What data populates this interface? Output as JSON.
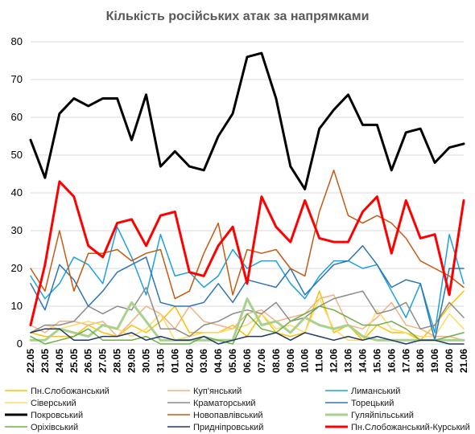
{
  "chart_data": {
    "type": "line",
    "title": "Кількість російських атак за напрямками",
    "xlabel": "",
    "ylabel": "",
    "ylim": [
      0,
      80
    ],
    "yticks": [
      0,
      10,
      20,
      30,
      40,
      50,
      60,
      70,
      80
    ],
    "grid": true,
    "legend_position": "bottom",
    "x": [
      "22.05",
      "23.05",
      "24.05",
      "25.05",
      "26.05",
      "27.05",
      "28.05",
      "29.05",
      "30.05",
      "31.05",
      "01.06",
      "02.06",
      "03.06",
      "04.06",
      "05.06",
      "06.06",
      "07.06",
      "08.06",
      "09.06",
      "10.06",
      "11.06",
      "12.06",
      "13.06",
      "14.06",
      "15.06",
      "16.06",
      "17.06",
      "18.06",
      "19.06",
      "20.06",
      "21.06"
    ],
    "series": [
      {
        "name": "Пн.Слобожанський",
        "color": "#ffc000",
        "width": 1.5,
        "values": [
          3,
          2,
          2,
          2,
          5,
          3,
          2,
          5,
          3,
          6,
          10,
          3,
          3,
          3,
          5,
          2,
          8,
          3,
          2,
          3,
          14,
          3,
          5,
          1,
          5,
          3,
          3,
          1,
          5,
          10,
          14
        ]
      },
      {
        "name": "Куп'янський",
        "color": "#f4b183",
        "width": 1.5,
        "values": [
          5,
          3,
          6,
          6,
          5,
          6,
          2,
          6,
          10,
          8,
          4,
          10,
          6,
          5,
          4,
          8,
          9,
          6,
          7,
          8,
          12,
          13,
          5,
          4,
          7,
          11,
          5,
          4,
          2,
          2,
          1
        ]
      },
      {
        "name": "Лиманський",
        "color": "#1ba1e2",
        "width": 1.5,
        "values": [
          18,
          12,
          16,
          23,
          21,
          16,
          31,
          23,
          13,
          29,
          18,
          19,
          15,
          18,
          25,
          20,
          22,
          22,
          16,
          12,
          18,
          22,
          22,
          20,
          21,
          14,
          7,
          16,
          3,
          29,
          16
        ]
      },
      {
        "name": "Сіверський",
        "color": "#ffd966",
        "width": 1.5,
        "values": [
          3,
          5,
          4,
          5,
          6,
          5,
          4,
          2,
          4,
          8,
          1,
          2,
          3,
          3,
          4,
          5,
          8,
          4,
          5,
          3,
          12,
          4,
          1,
          1,
          9,
          4,
          3,
          2,
          2,
          8,
          4
        ]
      },
      {
        "name": "Краматорський",
        "color": "#8c8c8c",
        "width": 1.5,
        "values": [
          3,
          5,
          5,
          6,
          10,
          8,
          10,
          9,
          15,
          4,
          4,
          2,
          5,
          6,
          8,
          9,
          8,
          11,
          6,
          7,
          10,
          12,
          13,
          14,
          8,
          9,
          11,
          4,
          5,
          11,
          7
        ]
      },
      {
        "name": "Торецький",
        "color": "#2e75b6",
        "width": 1.5,
        "values": [
          16,
          9,
          21,
          17,
          10,
          14,
          19,
          21,
          23,
          11,
          10,
          10,
          11,
          16,
          11,
          17,
          16,
          15,
          20,
          13,
          17,
          21,
          22,
          26,
          21,
          15,
          17,
          16,
          1,
          20,
          20
        ]
      },
      {
        "name": "Покровський",
        "color": "#000000",
        "width": 3,
        "values": [
          54,
          44,
          61,
          65,
          63,
          65,
          65,
          54,
          66,
          47,
          51,
          47,
          46,
          55,
          61,
          76,
          77,
          65,
          47,
          41,
          57,
          62,
          66,
          58,
          58,
          46,
          56,
          57,
          48,
          52,
          53
        ]
      },
      {
        "name": "Новопавлівський",
        "color": "#c55a11",
        "width": 1.5,
        "values": [
          20,
          14,
          30,
          14,
          24,
          24,
          25,
          22,
          24,
          25,
          12,
          14,
          24,
          32,
          13,
          25,
          24,
          25,
          20,
          18,
          35,
          46,
          34,
          32,
          34,
          32,
          28,
          22,
          20,
          18,
          15
        ]
      },
      {
        "name": "Гуляйпільський",
        "color": "#a9d18e",
        "width": 3,
        "values": [
          1,
          1,
          4,
          3,
          2,
          5,
          4,
          11,
          6,
          1,
          1,
          1,
          1,
          1,
          1,
          12,
          5,
          6,
          3,
          7,
          5,
          4,
          5,
          2,
          1,
          1,
          1,
          1,
          1,
          1,
          1
        ]
      },
      {
        "name": "Оріхівський",
        "color": "#70ad47",
        "width": 1.5,
        "values": [
          2,
          0,
          1,
          2,
          4,
          1,
          1,
          1,
          2,
          0,
          0,
          0,
          2,
          1,
          0,
          8,
          4,
          3,
          6,
          8,
          10,
          9,
          7,
          5,
          5,
          6,
          4,
          1,
          1,
          2,
          3
        ]
      },
      {
        "name": "Придніпровський",
        "color": "#203864",
        "width": 1.5,
        "values": [
          3,
          4,
          4,
          1,
          1,
          2,
          2,
          3,
          1,
          2,
          1,
          1,
          2,
          0,
          1,
          2,
          2,
          3,
          1,
          3,
          2,
          1,
          2,
          1,
          2,
          1,
          0,
          1,
          1,
          0,
          0
        ]
      },
      {
        "name": "Пн.Слобожанський-Курський",
        "color": "#ff0000",
        "width": 3,
        "values": [
          5,
          21,
          43,
          39,
          26,
          23,
          32,
          33,
          26,
          34,
          35,
          19,
          18,
          26,
          31,
          16,
          39,
          31,
          27,
          38,
          28,
          27,
          27,
          35,
          39,
          24,
          38,
          28,
          29,
          13,
          38
        ]
      }
    ]
  }
}
